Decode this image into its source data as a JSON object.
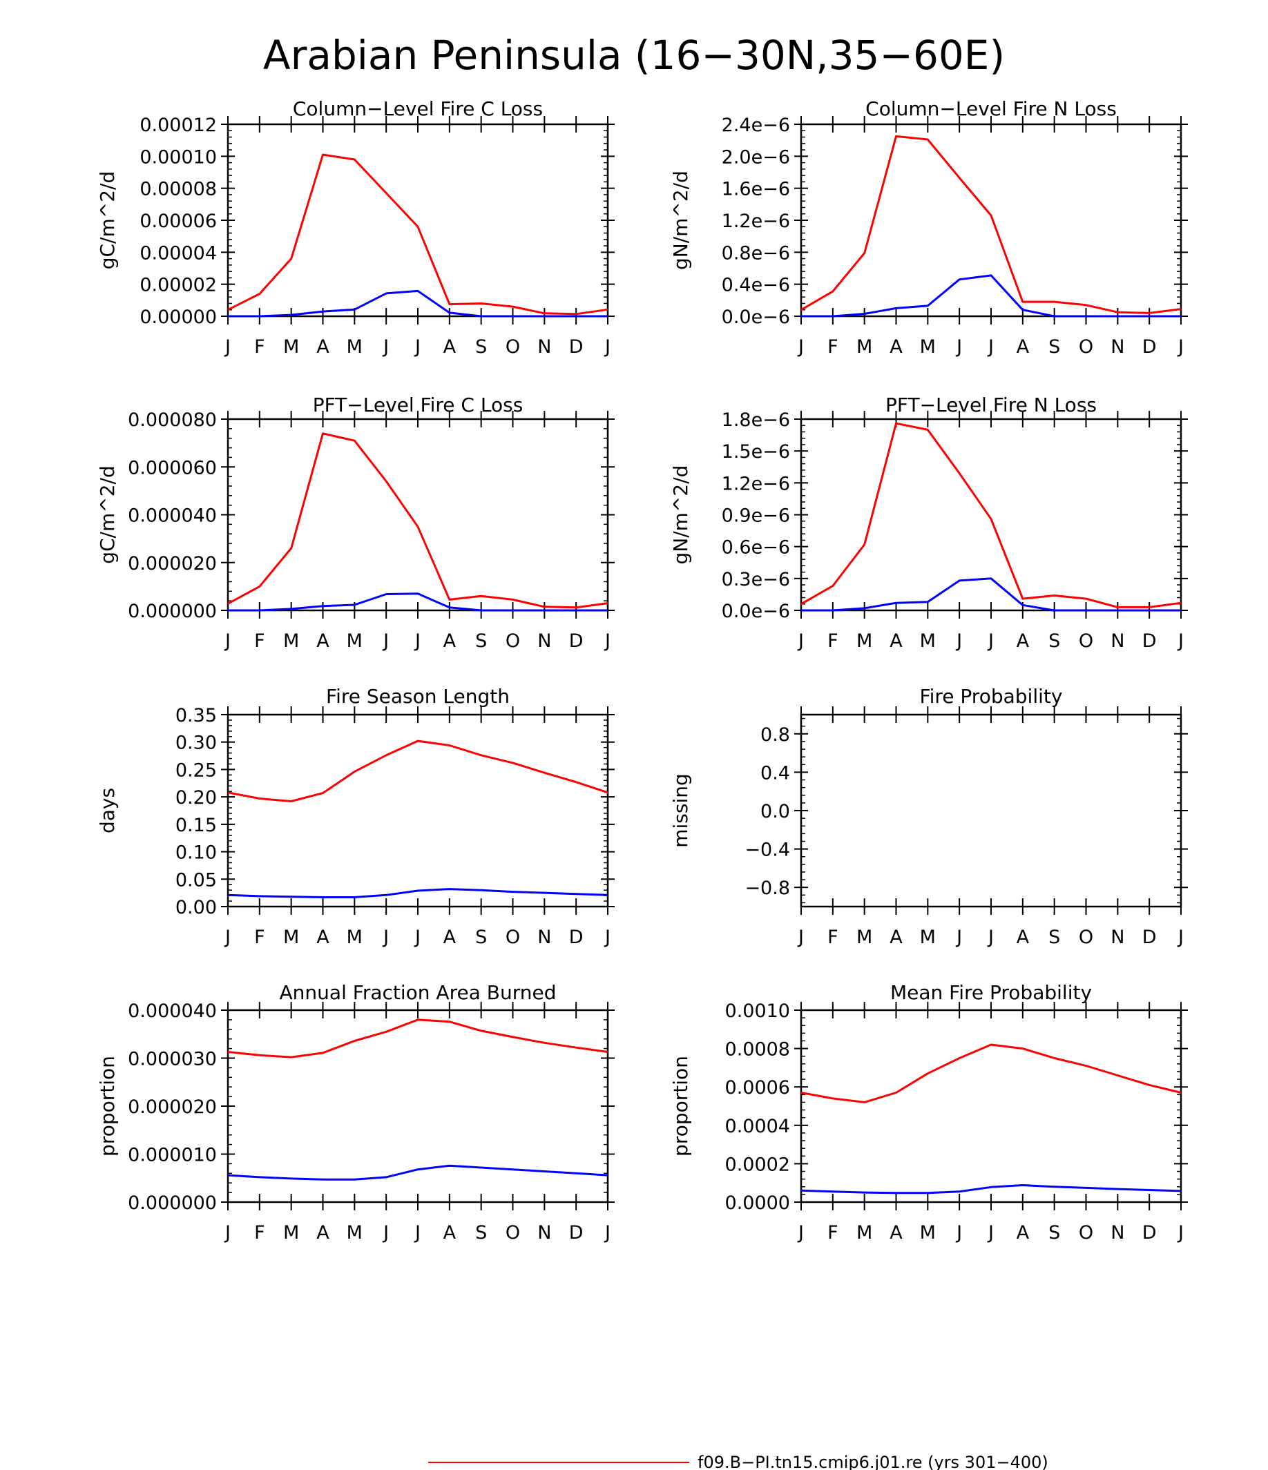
{
  "title": "Arabian Peninsula (16−30N,35−60E)",
  "colors": {
    "case1": "#ff0000",
    "case2": "#0000ff",
    "axis": "#000000"
  },
  "legend": [
    {
      "label": "f09.B−PI.tn15.cmip6.j01.re (yrs 301−400)",
      "color": "#ff0000"
    }
  ],
  "x_tick_labels": [
    "J",
    "F",
    "M",
    "A",
    "M",
    "J",
    "J",
    "A",
    "S",
    "O",
    "N",
    "D",
    "J"
  ],
  "chart_data": [
    {
      "type": "line",
      "title": "Column−Level Fire C Loss",
      "ylabel": "gC/m^2/d",
      "ylim": [
        0,
        0.00012
      ],
      "yticks": [
        0,
        2e-05,
        4e-05,
        6e-05,
        8e-05,
        0.0001,
        0.00012
      ],
      "ytick_labels": [
        "0.00000",
        "0.00002",
        "0.00004",
        "0.00006",
        "0.00008",
        "0.00010",
        "0.00012"
      ],
      "x": [
        "J",
        "F",
        "M",
        "A",
        "M",
        "J",
        "J",
        "A",
        "S",
        "O",
        "N",
        "D",
        "J"
      ],
      "series": [
        {
          "color": "#ff0000",
          "values": [
            4e-06,
            1.4e-05,
            3.6e-05,
            0.000101,
            9.8e-05,
            7.7e-05,
            5.6e-05,
            7.5e-06,
            8e-06,
            6e-06,
            1.8e-06,
            1.4e-06,
            4.2e-06
          ]
        },
        {
          "color": "#0000ff",
          "values": [
            0,
            0,
            8e-07,
            3e-06,
            4.2e-06,
            1.43e-05,
            1.58e-05,
            2.2e-06,
            0,
            0,
            0,
            0,
            0
          ]
        }
      ]
    },
    {
      "type": "line",
      "title": "Column−Level Fire N Loss",
      "ylabel": "gN/m^2/d",
      "ylim": [
        0,
        2.4e-06
      ],
      "yticks": [
        0,
        4e-07,
        8e-07,
        1.2e-06,
        1.6e-06,
        2e-06,
        2.4e-06
      ],
      "ytick_labels": [
        "0.0e−6",
        "0.4e−6",
        "0.8e−6",
        "1.2e−6",
        "1.6e−6",
        "2.0e−6",
        "2.4e−6"
      ],
      "x": [
        "J",
        "F",
        "M",
        "A",
        "M",
        "J",
        "J",
        "A",
        "S",
        "O",
        "N",
        "D",
        "J"
      ],
      "series": [
        {
          "color": "#ff0000",
          "values": [
            8e-08,
            3.1e-07,
            7.9e-07,
            2.25e-06,
            2.21e-06,
            1.73e-06,
            1.26e-06,
            1.8e-07,
            1.8e-07,
            1.4e-07,
            5e-08,
            4e-08,
            9e-08
          ]
        },
        {
          "color": "#0000ff",
          "values": [
            0,
            0,
            3e-08,
            1e-07,
            1.3e-07,
            4.6e-07,
            5.1e-07,
            8e-08,
            0,
            0,
            0,
            0,
            0
          ]
        }
      ]
    },
    {
      "type": "line",
      "title": "PFT−Level Fire C Loss",
      "ylabel": "gC/m^2/d",
      "ylim": [
        0,
        8e-05
      ],
      "yticks": [
        0,
        2e-05,
        4e-05,
        6e-05,
        8e-05
      ],
      "ytick_labels": [
        "0.000000",
        "0.000020",
        "0.000040",
        "0.000060",
        "0.000080"
      ],
      "x": [
        "J",
        "F",
        "M",
        "A",
        "M",
        "J",
        "J",
        "A",
        "S",
        "O",
        "N",
        "D",
        "J"
      ],
      "series": [
        {
          "color": "#ff0000",
          "values": [
            2.8e-06,
            1e-05,
            2.6e-05,
            7.4e-05,
            7.1e-05,
            5.4e-05,
            3.5e-05,
            4.5e-06,
            6e-06,
            4.5e-06,
            1.5e-06,
            1.2e-06,
            3e-06
          ]
        },
        {
          "color": "#0000ff",
          "values": [
            0,
            0,
            6e-07,
            1.8e-06,
            2.3e-06,
            6.8e-06,
            7e-06,
            1.2e-06,
            0,
            0,
            0,
            0,
            0
          ]
        }
      ]
    },
    {
      "type": "line",
      "title": "PFT−Level Fire N Loss",
      "ylabel": "gN/m^2/d",
      "ylim": [
        0,
        1.8e-06
      ],
      "yticks": [
        0,
        3e-07,
        6e-07,
        9e-07,
        1.2e-06,
        1.5e-06,
        1.8e-06
      ],
      "ytick_labels": [
        "0.0e−6",
        "0.3e−6",
        "0.6e−6",
        "0.9e−6",
        "1.2e−6",
        "1.5e−6",
        "1.8e−6"
      ],
      "x": [
        "J",
        "F",
        "M",
        "A",
        "M",
        "J",
        "J",
        "A",
        "S",
        "O",
        "N",
        "D",
        "J"
      ],
      "series": [
        {
          "color": "#ff0000",
          "values": [
            6e-08,
            2.3e-07,
            6.2e-07,
            1.76e-06,
            1.7e-06,
            1.29e-06,
            8.6e-07,
            1.1e-07,
            1.4e-07,
            1.1e-07,
            3e-08,
            3e-08,
            7e-08
          ]
        },
        {
          "color": "#0000ff",
          "values": [
            0,
            0,
            2e-08,
            7e-08,
            8e-08,
            2.8e-07,
            3e-07,
            5e-08,
            0,
            0,
            0,
            0,
            0
          ]
        }
      ]
    },
    {
      "type": "line",
      "title": "Fire Season Length",
      "ylabel": "days",
      "ylim": [
        0,
        0.35
      ],
      "yticks": [
        0,
        0.05,
        0.1,
        0.15,
        0.2,
        0.25,
        0.3,
        0.35
      ],
      "ytick_labels": [
        "0.00",
        "0.05",
        "0.10",
        "0.15",
        "0.20",
        "0.25",
        "0.30",
        "0.35"
      ],
      "x": [
        "J",
        "F",
        "M",
        "A",
        "M",
        "J",
        "J",
        "A",
        "S",
        "O",
        "N",
        "D",
        "J"
      ],
      "series": [
        {
          "color": "#ff0000",
          "values": [
            0.208,
            0.197,
            0.192,
            0.207,
            0.246,
            0.276,
            0.302,
            0.294,
            0.276,
            0.262,
            0.244,
            0.227,
            0.208
          ]
        },
        {
          "color": "#0000ff",
          "values": [
            0.021,
            0.019,
            0.018,
            0.017,
            0.017,
            0.021,
            0.029,
            0.032,
            0.03,
            0.027,
            0.025,
            0.023,
            0.021
          ]
        }
      ]
    },
    {
      "type": "line",
      "title": "Fire Probability",
      "ylabel": "missing",
      "ylim": [
        -1,
        1
      ],
      "yticks": [
        -0.8,
        -0.4,
        0,
        0.4,
        0.8
      ],
      "ytick_labels": [
        "−0.8",
        "−0.4",
        "0.0",
        "0.4",
        "0.8"
      ],
      "x": [
        "J",
        "F",
        "M",
        "A",
        "M",
        "J",
        "J",
        "A",
        "S",
        "O",
        "N",
        "D",
        "J"
      ],
      "series": []
    },
    {
      "type": "line",
      "title": "Annual Fraction Area Burned",
      "ylabel": "proportion",
      "ylim": [
        0,
        4e-05
      ],
      "yticks": [
        0,
        1e-05,
        2e-05,
        3e-05,
        4e-05
      ],
      "ytick_labels": [
        "0.000000",
        "0.000010",
        "0.000020",
        "0.000030",
        "0.000040"
      ],
      "x": [
        "J",
        "F",
        "M",
        "A",
        "M",
        "J",
        "J",
        "A",
        "S",
        "O",
        "N",
        "D",
        "J"
      ],
      "series": [
        {
          "color": "#ff0000",
          "values": [
            3.13e-05,
            3.06e-05,
            3.02e-05,
            3.11e-05,
            3.36e-05,
            3.55e-05,
            3.8e-05,
            3.76e-05,
            3.57e-05,
            3.44e-05,
            3.32e-05,
            3.22e-05,
            3.13e-05
          ]
        },
        {
          "color": "#0000ff",
          "values": [
            5.6e-06,
            5.2e-06,
            4.9e-06,
            4.7e-06,
            4.7e-06,
            5.2e-06,
            6.8e-06,
            7.6e-06,
            7.2e-06,
            6.8e-06,
            6.4e-06,
            6e-06,
            5.6e-06
          ]
        }
      ]
    },
    {
      "type": "line",
      "title": "Mean Fire Probability",
      "ylabel": "proportion",
      "ylim": [
        0,
        0.001
      ],
      "yticks": [
        0,
        0.0002,
        0.0004,
        0.0006,
        0.0008,
        0.001
      ],
      "ytick_labels": [
        "0.0000",
        "0.0002",
        "0.0004",
        "0.0006",
        "0.0008",
        "0.0010"
      ],
      "x": [
        "J",
        "F",
        "M",
        "A",
        "M",
        "J",
        "J",
        "A",
        "S",
        "O",
        "N",
        "D",
        "J"
      ],
      "series": [
        {
          "color": "#ff0000",
          "values": [
            0.00057,
            0.00054,
            0.00052,
            0.00057,
            0.00067,
            0.00075,
            0.00082,
            0.0008,
            0.00075,
            0.00071,
            0.00066,
            0.00061,
            0.00057
          ]
        },
        {
          "color": "#0000ff",
          "values": [
            6e-05,
            5.5e-05,
            5e-05,
            4.8e-05,
            4.8e-05,
            5.5e-05,
            7.8e-05,
            8.8e-05,
            8e-05,
            7.4e-05,
            6.8e-05,
            6.3e-05,
            5.8e-05
          ]
        }
      ]
    }
  ]
}
